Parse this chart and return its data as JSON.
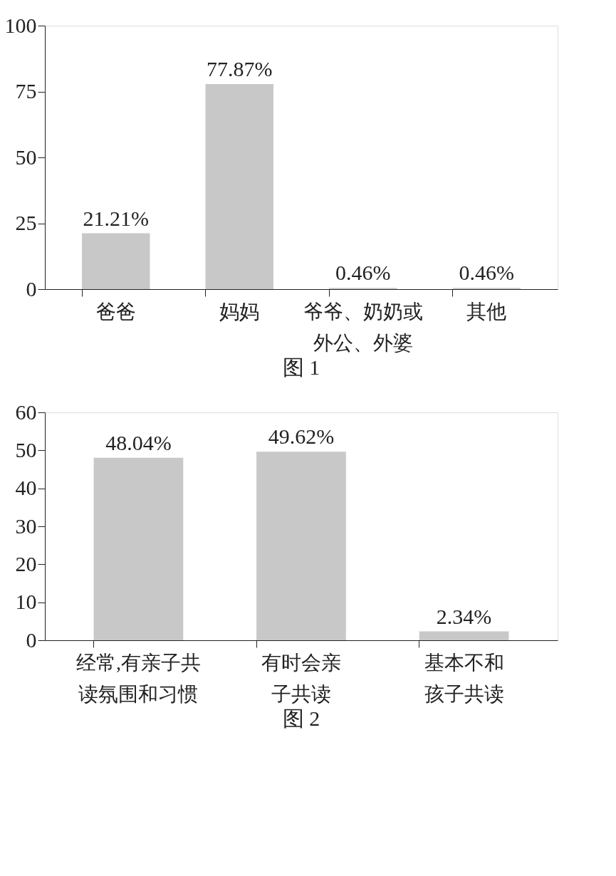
{
  "chart_data": [
    {
      "type": "bar",
      "title": "图 1",
      "categories": [
        "爸爸",
        "妈妈",
        "爷爷、奶奶或外公、外婆",
        "其他"
      ],
      "values": [
        21.21,
        77.87,
        0.46,
        0.46
      ],
      "value_labels": [
        "21.21%",
        "77.87%",
        "0.46%",
        "0.46%"
      ],
      "color": "#c8c8c8",
      "ylim": [
        0,
        100
      ],
      "yticks": [
        0,
        25,
        50,
        75,
        100
      ],
      "grid": false
    },
    {
      "type": "bar",
      "title": "图 2",
      "categories": [
        "经常,有亲子共读氛围和习惯",
        "有时会亲子共读",
        "基本不和孩子共读"
      ],
      "values": [
        48.04,
        49.62,
        2.34
      ],
      "value_labels": [
        "48.04%",
        "49.62%",
        "2.34%"
      ],
      "color": "#c8c8c8",
      "ylim": [
        0,
        60
      ],
      "yticks": [
        0,
        10,
        20,
        30,
        40,
        50,
        60
      ],
      "grid": false
    }
  ]
}
